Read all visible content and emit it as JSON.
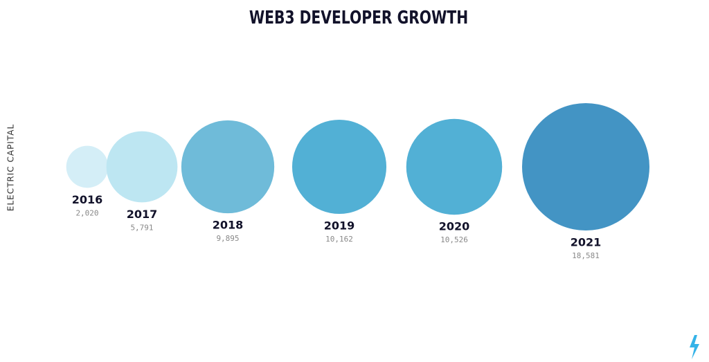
{
  "chart_data": {
    "type": "bubble",
    "title": "WEB3 DEVELOPER GROWTH",
    "categories": [
      "2016",
      "2017",
      "2018",
      "2019",
      "2020",
      "2021"
    ],
    "values": [
      2020,
      5791,
      9895,
      10162,
      10526,
      18581
    ],
    "value_labels": [
      "2,020",
      "5,791",
      "9,895",
      "10,162",
      "10,526",
      "18,581"
    ],
    "colors": [
      "#d4eef7",
      "#bde6f2",
      "#6fbbd9",
      "#52b0d5",
      "#52b0d5",
      "#4394c4"
    ]
  },
  "brand": "ELECTRIC CAPITAL"
}
